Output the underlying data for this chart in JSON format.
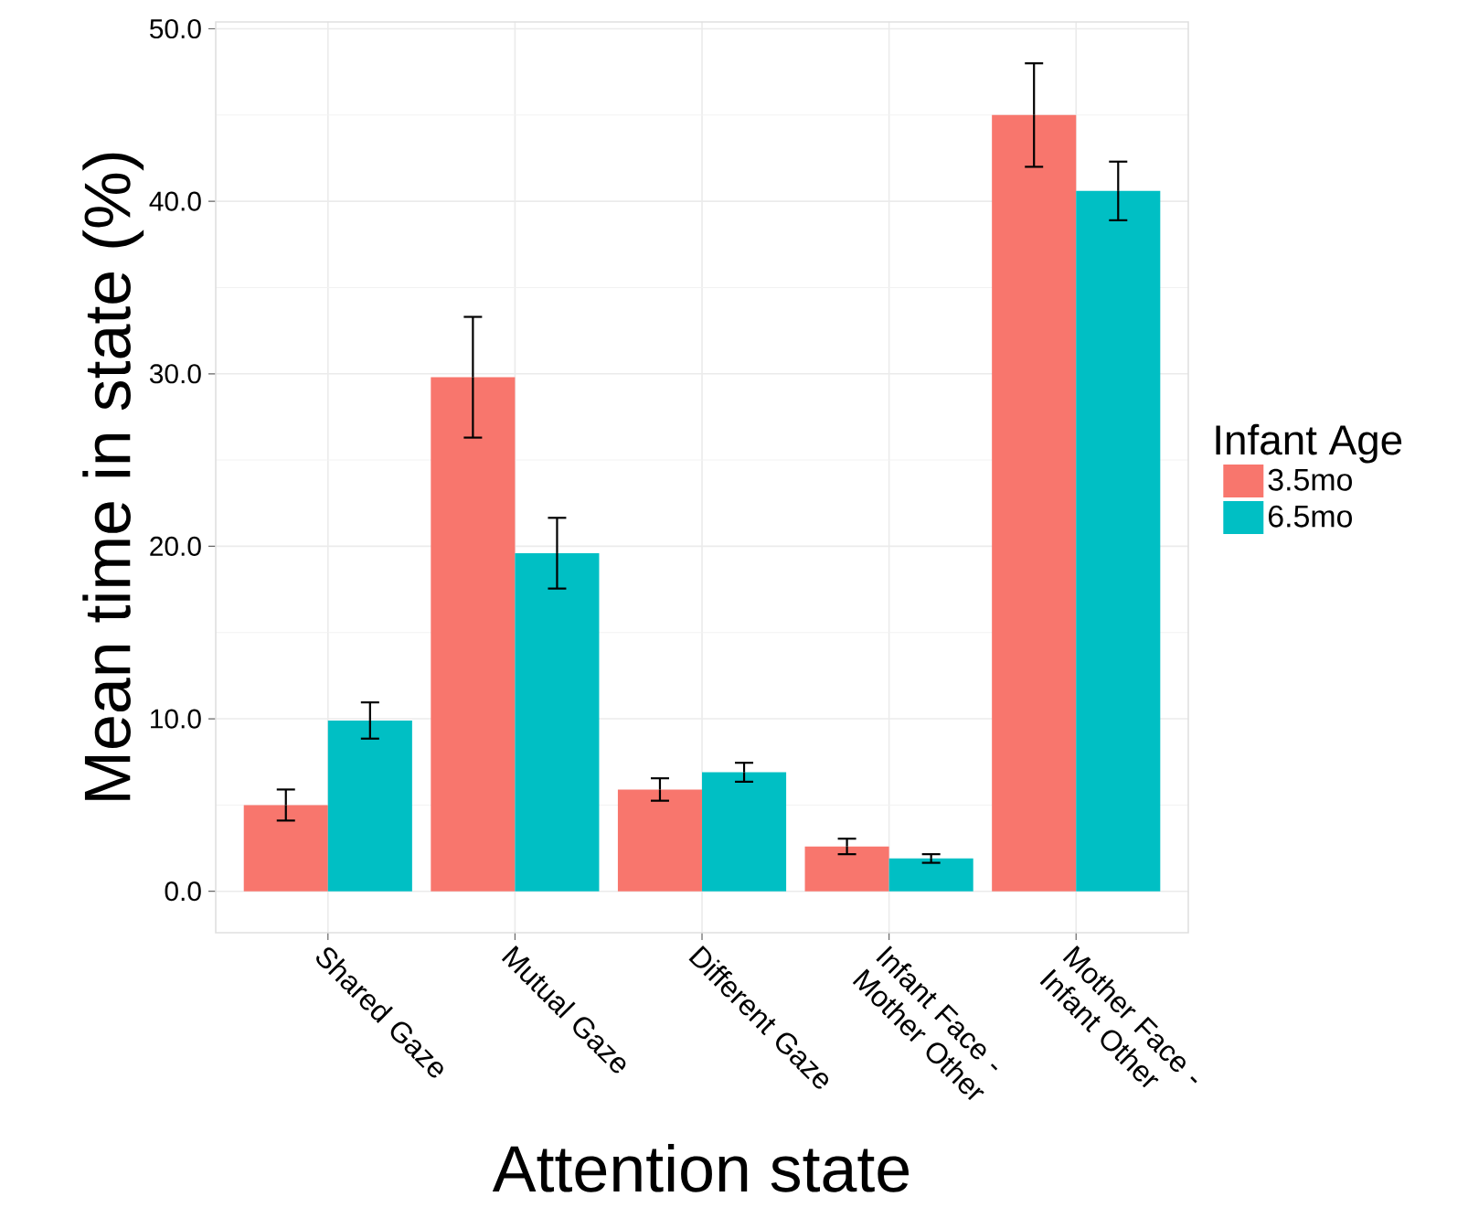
{
  "chart_data": {
    "type": "bar",
    "xlabel": "Attention state",
    "ylabel": "Mean time in state (%)",
    "legend_title": "Infant Age",
    "categories": [
      "Shared Gaze",
      "Mutual Gaze",
      "Different Gaze",
      "Infant Face - Mother Other",
      "Mother Face - Infant Other"
    ],
    "series": [
      {
        "name": "3.5mo",
        "color": "#f8766d",
        "values": [
          5.0,
          29.8,
          5.9,
          2.6,
          45.0
        ],
        "errors": [
          0.9,
          3.5,
          0.65,
          0.45,
          3.0
        ]
      },
      {
        "name": "6.5mo",
        "color": "#00bfc4",
        "values": [
          9.9,
          19.6,
          6.9,
          1.9,
          40.6
        ],
        "errors": [
          1.05,
          2.05,
          0.55,
          0.25,
          1.7
        ]
      }
    ],
    "ylim": [
      -2.4,
      50.4
    ],
    "yticks": [
      {
        "value": 0,
        "label": "0.0"
      },
      {
        "value": 10,
        "label": "10.0"
      },
      {
        "value": 20,
        "label": "20.0"
      },
      {
        "value": 30,
        "label": "30.0"
      },
      {
        "value": 40,
        "label": "40.0"
      },
      {
        "value": 50,
        "label": "50.0"
      }
    ],
    "grid": true,
    "legend": "right"
  }
}
